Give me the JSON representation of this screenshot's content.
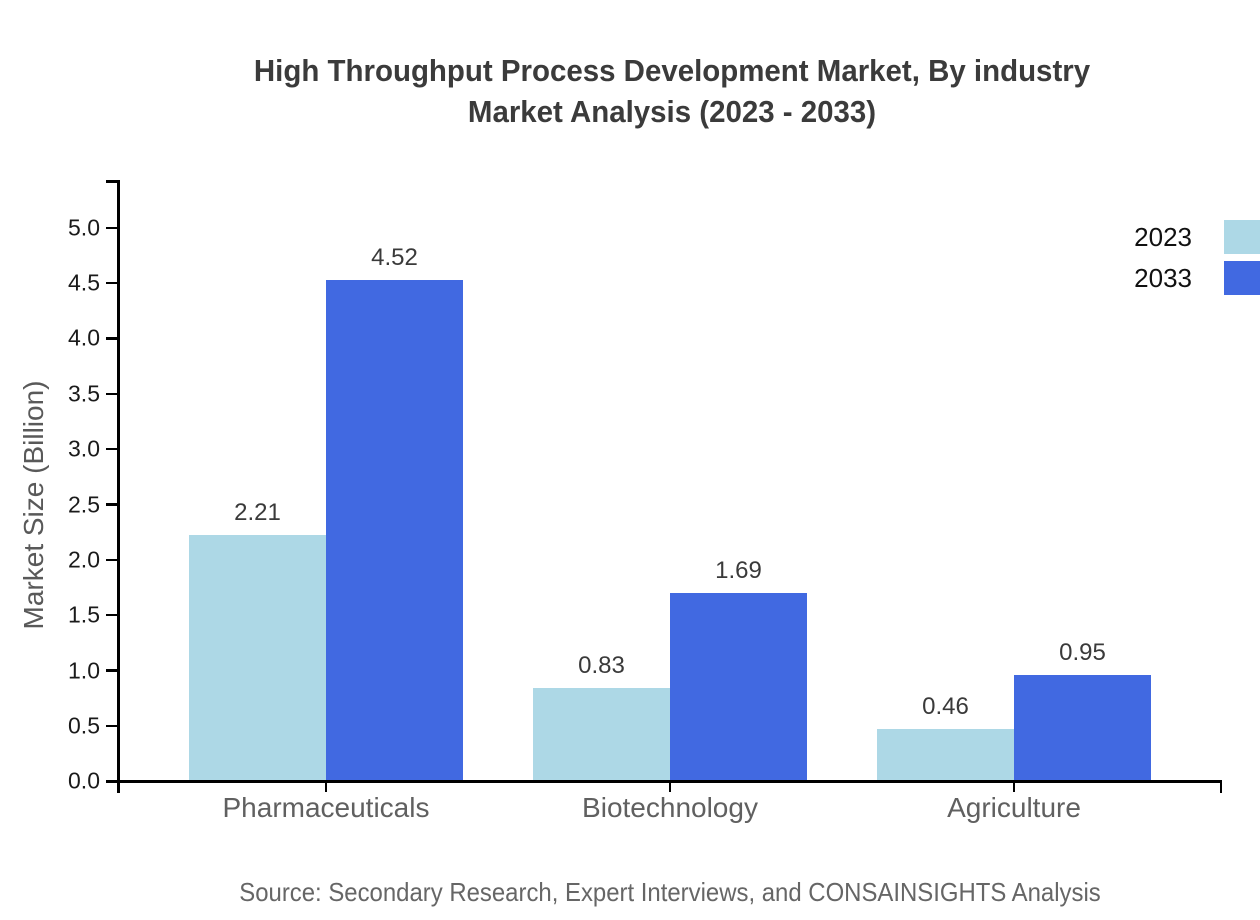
{
  "title": {
    "line1": "High Throughput Process Development Market, By industry",
    "line2": "Market Analysis (2023 - 2033)"
  },
  "source": "Source: Secondary Research, Expert Interviews, and CONSAINSIGHTS Analysis",
  "colors": {
    "series_2023": "#ADD8E6",
    "series_2033": "#4169E1",
    "axis": "#000000",
    "tick_label": "#1a1a1a",
    "category_label": "#606060",
    "value_label": "#3a3a3a",
    "title_text": "#3b3b3b",
    "source_text": "#666666",
    "ylabel_text": "#595959",
    "background": "#ffffff"
  },
  "legend": [
    {
      "label": "2023",
      "color": "#ADD8E6"
    },
    {
      "label": "2033",
      "color": "#4169E1"
    }
  ],
  "chart_data": {
    "type": "bar",
    "title": "High Throughput Process Development Market, By industry Market Analysis (2023 - 2033)",
    "categories": [
      "Pharmaceuticals",
      "Biotechnology",
      "Agriculture"
    ],
    "series": [
      {
        "name": "2023",
        "color": "#ADD8E6",
        "values": [
          2.21,
          0.83,
          0.46
        ]
      },
      {
        "name": "2033",
        "color": "#4169E1",
        "values": [
          4.52,
          1.69,
          0.95
        ]
      }
    ],
    "value_labels": [
      [
        "2.21",
        "0.83",
        "0.46"
      ],
      [
        "4.52",
        "1.69",
        "0.95"
      ]
    ],
    "xlabel": "",
    "ylabel": "Market Size (Billion)",
    "ylim": [
      0,
      5
    ],
    "yticks": [
      0.0,
      0.5,
      1.0,
      1.5,
      2.0,
      2.5,
      3.0,
      3.5,
      4.0,
      4.5,
      5.0
    ],
    "grid": false,
    "legend_position": "top-right"
  }
}
